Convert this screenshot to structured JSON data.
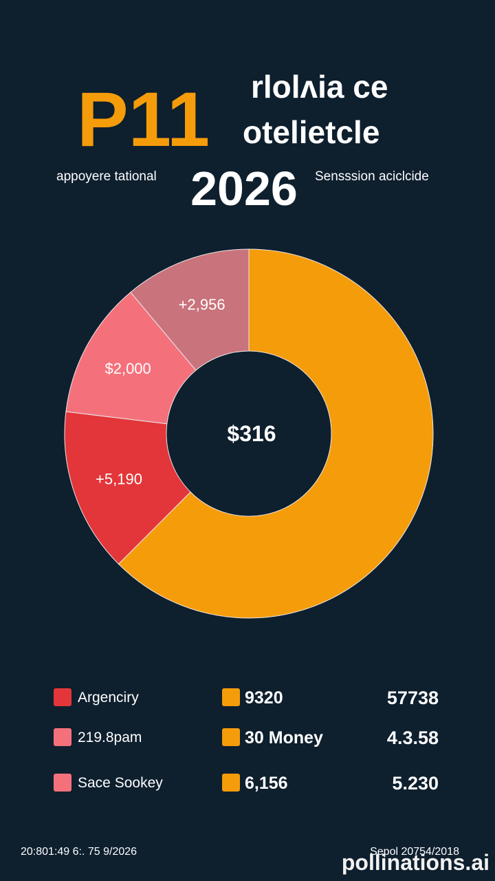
{
  "chart_data": {
    "type": "pie",
    "title": "P11",
    "title_lines": [
      "rlolʌia ce",
      "otelietcle"
    ],
    "subtitle_left": "appoyere tational",
    "subtitle_year": "2026",
    "subtitle_right": "Sensssion aciclcide",
    "center_label": "$316",
    "values": [
      62.5,
      14.4,
      12,
      11.1
    ],
    "colors": [
      "#f59c0a",
      "#e3363a",
      "#f4717c",
      "#c9737c"
    ],
    "slice_labels": [
      null,
      "+5,190",
      "$2,000",
      "+2,956"
    ],
    "legend_rows": [
      {
        "left": "Argenciry",
        "left_color": "#e3363a",
        "middle": "9320",
        "middle_color": "#f59c0a",
        "right": "57738"
      },
      {
        "left": "219.8pam",
        "left_color": "#f4717c",
        "middle": "30 Money",
        "middle_color": "#f59c0a",
        "right": "4.3.58"
      },
      {
        "left": "Sace Sookey",
        "left_color": "#f4717c",
        "middle": "6,156",
        "middle_color": "#f59c0a",
        "right": "5.230"
      }
    ],
    "footer_left": "20:801:49 6:. 75 9/2026",
    "footer_right": "Sepol 20754/2018",
    "watermark": "pollinations.ai"
  }
}
